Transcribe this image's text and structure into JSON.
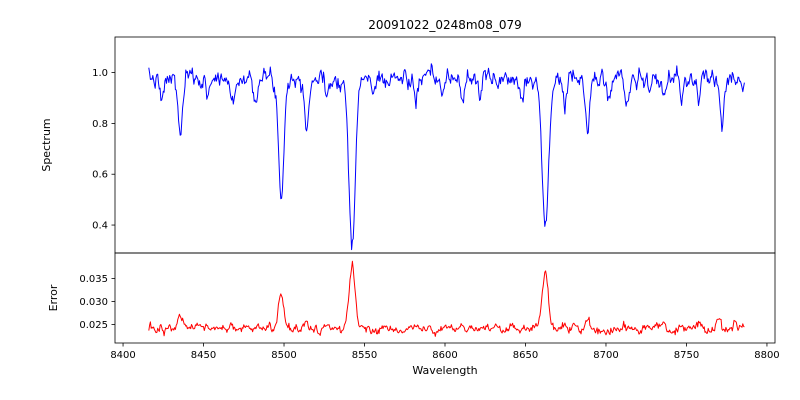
{
  "figure": {
    "title": "20091022_0248m08_079",
    "xlabel": "Wavelength",
    "background": "#ffffff",
    "xticks": [
      8400,
      8450,
      8500,
      8550,
      8600,
      8650,
      8700,
      8750,
      8800
    ],
    "xtick_labels": [
      "8400",
      "8450",
      "8500",
      "8550",
      "8600",
      "8650",
      "8700",
      "8750",
      "8800"
    ]
  },
  "chart_data": [
    {
      "type": "line",
      "name": "spectrum",
      "ylabel": "Spectrum",
      "color": "#0000ff",
      "xlim": [
        8395,
        8805
      ],
      "ylim": [
        0.29,
        1.14
      ],
      "yticks": [
        0.4,
        0.6,
        0.8,
        1.0
      ],
      "ytick_labels": [
        "0.4",
        "0.6",
        "0.8",
        "1.0"
      ],
      "x_start": 8416,
      "x_end": 8786,
      "x_step": 0.5,
      "baseline": 0.975,
      "noise_sigma": 0.016,
      "noise_smooth": 0.55,
      "seed": 7,
      "features": [
        {
          "center": 8424.0,
          "amplitude": -0.1,
          "sigma": 1.2
        },
        {
          "center": 8435.5,
          "amplitude": -0.22,
          "sigma": 1.4
        },
        {
          "center": 8452.0,
          "amplitude": -0.07,
          "sigma": 1.0
        },
        {
          "center": 8468.0,
          "amplitude": -0.1,
          "sigma": 1.2
        },
        {
          "center": 8482.0,
          "amplitude": -0.06,
          "sigma": 1.0
        },
        {
          "center": 8498.2,
          "amplitude": -0.47,
          "sigma": 1.6
        },
        {
          "center": 8514.2,
          "amplitude": -0.17,
          "sigma": 1.3
        },
        {
          "center": 8526.0,
          "amplitude": -0.07,
          "sigma": 1.0
        },
        {
          "center": 8542.3,
          "amplitude": -0.63,
          "sigma": 2.0
        },
        {
          "center": 8556.0,
          "amplitude": -0.06,
          "sigma": 1.0
        },
        {
          "center": 8582.0,
          "amplitude": -0.09,
          "sigma": 1.1
        },
        {
          "center": 8598.8,
          "amplitude": -0.07,
          "sigma": 1.0
        },
        {
          "center": 8611.0,
          "amplitude": -0.08,
          "sigma": 1.0
        },
        {
          "center": 8621.5,
          "amplitude": -0.06,
          "sigma": 1.0
        },
        {
          "center": 8648.0,
          "amplitude": -0.07,
          "sigma": 1.0
        },
        {
          "center": 8662.4,
          "amplitude": -0.61,
          "sigma": 1.9
        },
        {
          "center": 8674.5,
          "amplitude": -0.12,
          "sigma": 1.1
        },
        {
          "center": 8688.5,
          "amplitude": -0.21,
          "sigma": 1.3
        },
        {
          "center": 8702.0,
          "amplitude": -0.07,
          "sigma": 1.0
        },
        {
          "center": 8713.0,
          "amplitude": -0.1,
          "sigma": 1.1
        },
        {
          "center": 8727.0,
          "amplitude": -0.06,
          "sigma": 1.0
        },
        {
          "center": 8736.0,
          "amplitude": -0.08,
          "sigma": 1.0
        },
        {
          "center": 8747.0,
          "amplitude": -0.07,
          "sigma": 1.0
        },
        {
          "center": 8757.5,
          "amplitude": -0.11,
          "sigma": 1.1
        },
        {
          "center": 8772.0,
          "amplitude": -0.13,
          "sigma": 1.1
        }
      ]
    },
    {
      "type": "line",
      "name": "error",
      "ylabel": "Error",
      "color": "#ff0000",
      "xlim": [
        8395,
        8805
      ],
      "ylim": [
        0.021,
        0.0405
      ],
      "yticks": [
        0.025,
        0.03,
        0.035
      ],
      "ytick_labels": [
        "0.025",
        "0.030",
        "0.035"
      ],
      "x_start": 8416,
      "x_end": 8786,
      "x_step": 0.5,
      "baseline": 0.024,
      "noise_sigma": 0.00045,
      "noise_smooth": 0.5,
      "seed": 13,
      "features": [
        {
          "center": 8435.5,
          "amplitude": 0.003,
          "sigma": 1.5
        },
        {
          "center": 8452.0,
          "amplitude": 0.001,
          "sigma": 1.2
        },
        {
          "center": 8468.0,
          "amplitude": 0.0013,
          "sigma": 1.2
        },
        {
          "center": 8498.2,
          "amplitude": 0.0085,
          "sigma": 1.6
        },
        {
          "center": 8514.2,
          "amplitude": 0.0018,
          "sigma": 1.3
        },
        {
          "center": 8542.3,
          "amplitude": 0.0138,
          "sigma": 1.8
        },
        {
          "center": 8582.0,
          "amplitude": 0.0008,
          "sigma": 1.1
        },
        {
          "center": 8611.0,
          "amplitude": 0.0008,
          "sigma": 1.1
        },
        {
          "center": 8662.4,
          "amplitude": 0.0125,
          "sigma": 1.8
        },
        {
          "center": 8674.5,
          "amplitude": 0.0012,
          "sigma": 1.1
        },
        {
          "center": 8688.5,
          "amplitude": 0.0022,
          "sigma": 1.3
        },
        {
          "center": 8713.0,
          "amplitude": 0.001,
          "sigma": 1.1
        },
        {
          "center": 8736.0,
          "amplitude": 0.0008,
          "sigma": 1.0
        },
        {
          "center": 8757.5,
          "amplitude": 0.0014,
          "sigma": 1.1
        },
        {
          "center": 8770.0,
          "amplitude": 0.0026,
          "sigma": 1.2
        },
        {
          "center": 8780.0,
          "amplitude": 0.0015,
          "sigma": 1.1
        }
      ]
    }
  ]
}
